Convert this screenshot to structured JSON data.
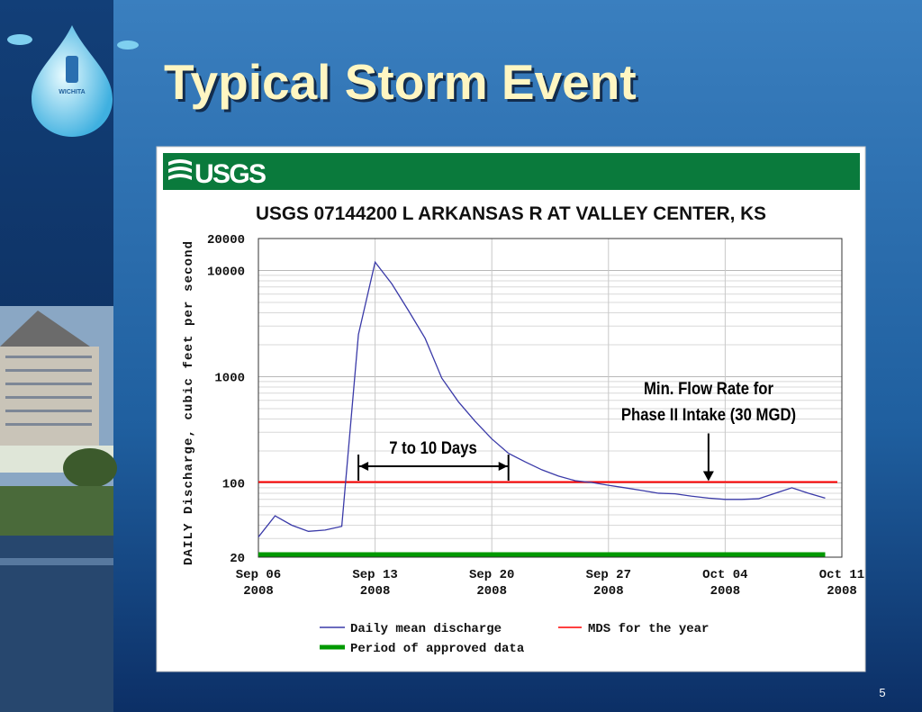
{
  "slide": {
    "title": "Typical Storm Event",
    "page_number": "5",
    "logo_text": "WICHITA"
  },
  "chart_data": {
    "type": "line",
    "header": "USGS",
    "title": "USGS 07144200 L ARKANSAS R AT VALLEY CENTER, KS",
    "y_label": "DAILY Discharge, cubic feet per second",
    "x": [
      "2008-09-06",
      "2008-09-07",
      "2008-09-08",
      "2008-09-09",
      "2008-09-10",
      "2008-09-11",
      "2008-09-12",
      "2008-09-13",
      "2008-09-14",
      "2008-09-15",
      "2008-09-16",
      "2008-09-17",
      "2008-09-18",
      "2008-09-19",
      "2008-09-20",
      "2008-09-21",
      "2008-09-22",
      "2008-09-23",
      "2008-09-24",
      "2008-09-25",
      "2008-09-26",
      "2008-09-27",
      "2008-09-28",
      "2008-09-29",
      "2008-09-30",
      "2008-10-01",
      "2008-10-02",
      "2008-10-03",
      "2008-10-04",
      "2008-10-05",
      "2008-10-06",
      "2008-10-07",
      "2008-10-08",
      "2008-10-09",
      "2008-10-10"
    ],
    "series": [
      {
        "name": "Daily mean discharge",
        "color": "#3a3aa8",
        "values": [
          31,
          49,
          40,
          35,
          36,
          39,
          2500,
          12000,
          7500,
          4200,
          2300,
          970,
          580,
          380,
          260,
          190,
          158,
          133,
          116,
          105,
          101,
          95,
          90,
          85,
          80,
          79,
          75,
          72,
          70,
          70,
          71,
          80,
          90,
          80,
          72
        ]
      }
    ],
    "reference_line": {
      "name": "MDS for the year",
      "color": "#ff0000",
      "value": 102
    },
    "approved_period": {
      "name": "Period of approved data",
      "color": "#009900",
      "x": [
        "2008-09-06",
        "2008-10-10"
      ]
    },
    "ylim": [
      20,
      20000
    ],
    "yticks": [
      20,
      100,
      1000,
      10000,
      20000
    ],
    "ylog": true,
    "xlim": [
      "2008-09-06",
      "2008-10-11"
    ],
    "xticks": [
      {
        "value": "2008-09-06",
        "label": "Sep 06\n2008"
      },
      {
        "value": "2008-09-13",
        "label": "Sep 13\n2008"
      },
      {
        "value": "2008-09-20",
        "label": "Sep 20\n2008"
      },
      {
        "value": "2008-09-27",
        "label": "Sep 27\n2008"
      },
      {
        "value": "2008-10-04",
        "label": "Oct 04\n2008"
      },
      {
        "value": "2008-10-11",
        "label": "Oct 11\n2008"
      }
    ],
    "grid": true,
    "annotations": [
      {
        "text": "Min. Flow Rate for\nPhase II Intake (30 MGD)",
        "x": "2008-10-03",
        "y": 102
      },
      {
        "text": "7 to 10 Days",
        "x": [
          "2008-09-12",
          "2008-09-21"
        ]
      }
    ]
  }
}
